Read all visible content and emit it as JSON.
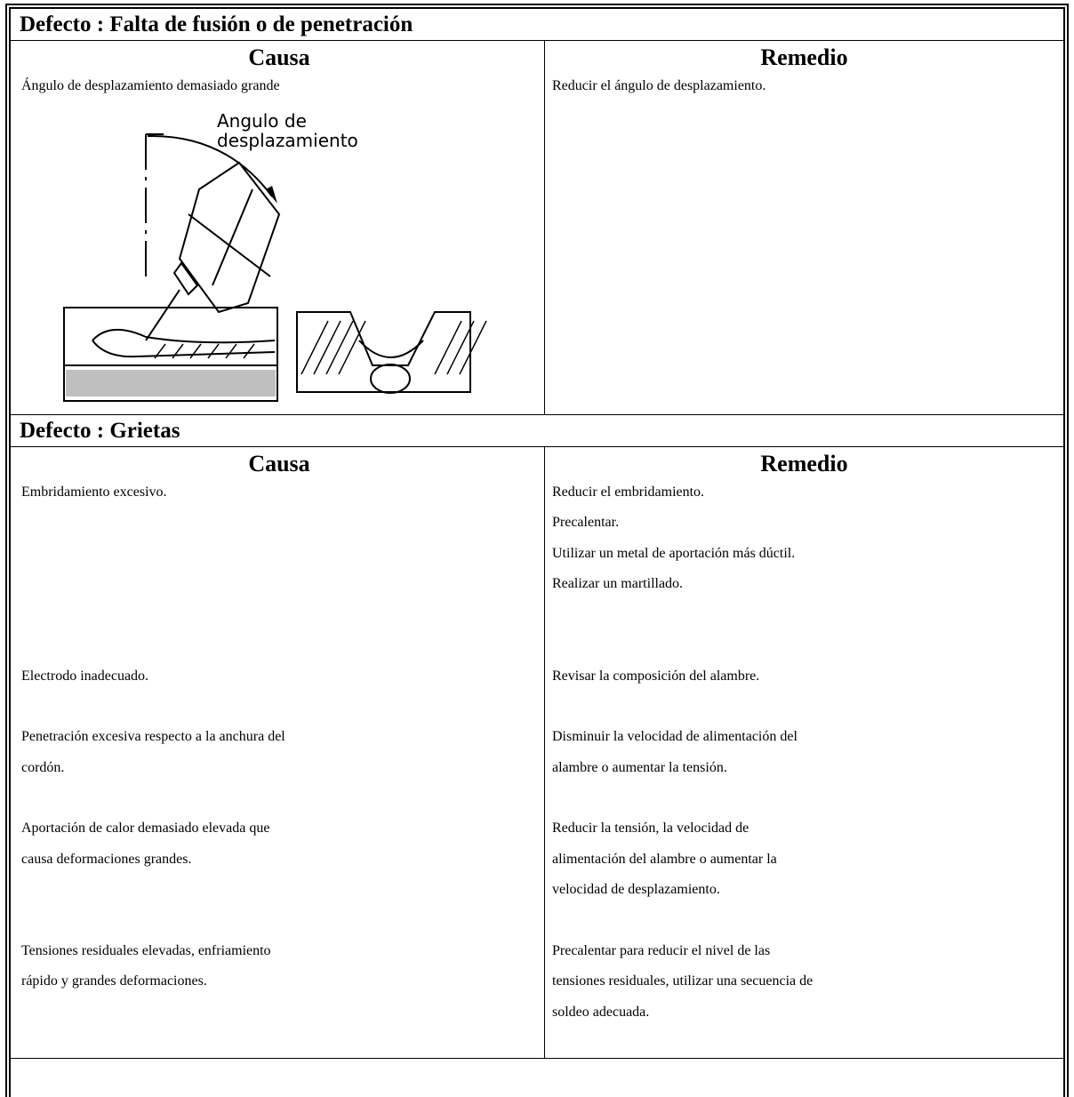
{
  "sections": [
    {
      "title": "Defecto : Falta de fusión o de penetración",
      "header": [
        "Causa",
        "Remedio"
      ],
      "rows": [
        {
          "cause": [
            "Ángulo de desplazamiento demasiado grande"
          ],
          "remedy": [
            "Reducir el ángulo de desplazamiento."
          ]
        }
      ],
      "figure": {
        "label": [
          "Angulo de",
          "desplazamiento"
        ]
      }
    },
    {
      "title": "Defecto : Grietas",
      "header": [
        "Causa",
        "Remedio"
      ],
      "rows": [
        {
          "cause": [
            "Embridamiento excesivo."
          ],
          "remedy": [
            "Reducir el embridamiento.",
            "Precalentar.",
            "Utilizar un metal de aportación más dúctil.",
            "Realizar un martillado."
          ]
        },
        {
          "cause": [
            "Electrodo inadecuado."
          ],
          "remedy": [
            "Revisar la composición del alambre."
          ]
        },
        {
          "cause": [
            "Penetración excesiva respecto a la anchura del",
            "cordón."
          ],
          "remedy": [
            "Disminuir la velocidad de alimentación del",
            "alambre o aumentar la tensión."
          ]
        },
        {
          "cause": [
            "Aportación de calor demasiado elevada que",
            "causa deformaciones grandes."
          ],
          "remedy": [
            "Reducir la tensión, la velocidad de",
            "alimentación del alambre o aumentar la",
            "velocidad de desplazamiento."
          ]
        },
        {
          "cause": [
            "Tensiones residuales elevadas, enfriamiento",
            "rápido y grandes deformaciones."
          ],
          "remedy": [
            "Precalentar para reducir el nivel de las",
            "tensiones residuales, utilizar una secuencia de",
            "soldeo adecuada."
          ]
        }
      ]
    }
  ]
}
